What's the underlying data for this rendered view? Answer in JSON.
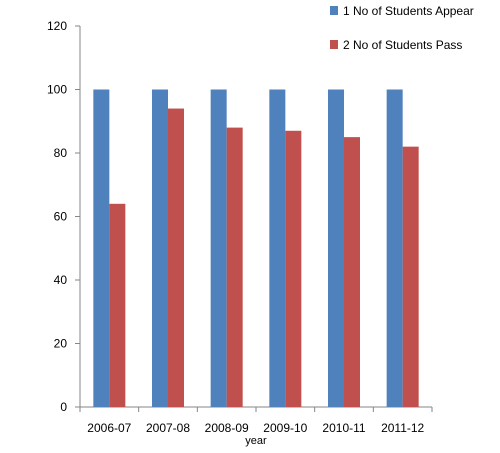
{
  "chart_data": {
    "type": "bar",
    "categories": [
      "2006-07",
      "2007-08",
      "2008-09",
      "2009-10",
      "2010-11",
      "2011-12"
    ],
    "series": [
      {
        "name": "1 No of Students Appear",
        "values": [
          100,
          100,
          100,
          100,
          100,
          100
        ],
        "color": "#4F81BD"
      },
      {
        "name": "2 No of Students Pass",
        "values": [
          64,
          94,
          88,
          87,
          85,
          82
        ],
        "color": "#C0504D"
      }
    ],
    "title": "",
    "xlabel": "year",
    "ylabel": "",
    "ylim": [
      0,
      120
    ],
    "yticks": [
      0,
      20,
      40,
      60,
      80,
      100,
      120
    ],
    "grid": false,
    "legend_position": "top-right"
  }
}
